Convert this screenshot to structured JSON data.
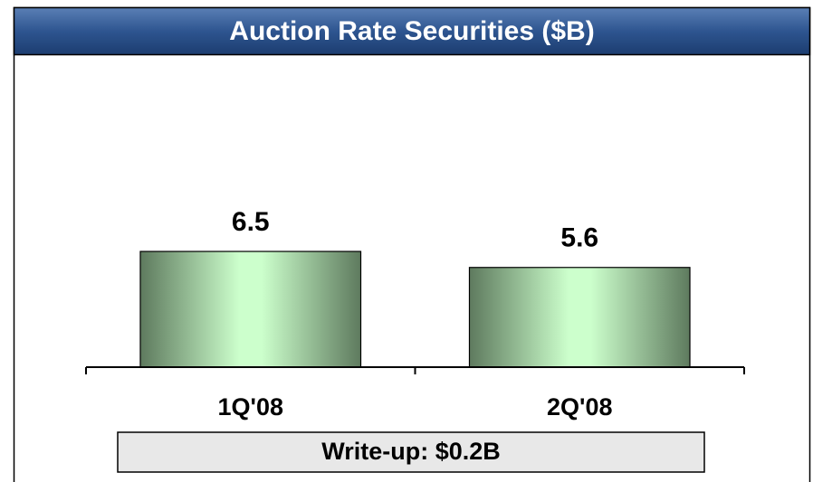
{
  "chart_data": {
    "type": "bar",
    "title": "Auction Rate Securities ($B)",
    "categories": [
      "1Q'08",
      "2Q'08"
    ],
    "values": [
      6.5,
      5.6
    ],
    "color": "#ccffcc",
    "ylim": [
      0,
      17.5
    ],
    "annotation": "Write-up: $0.2B"
  }
}
